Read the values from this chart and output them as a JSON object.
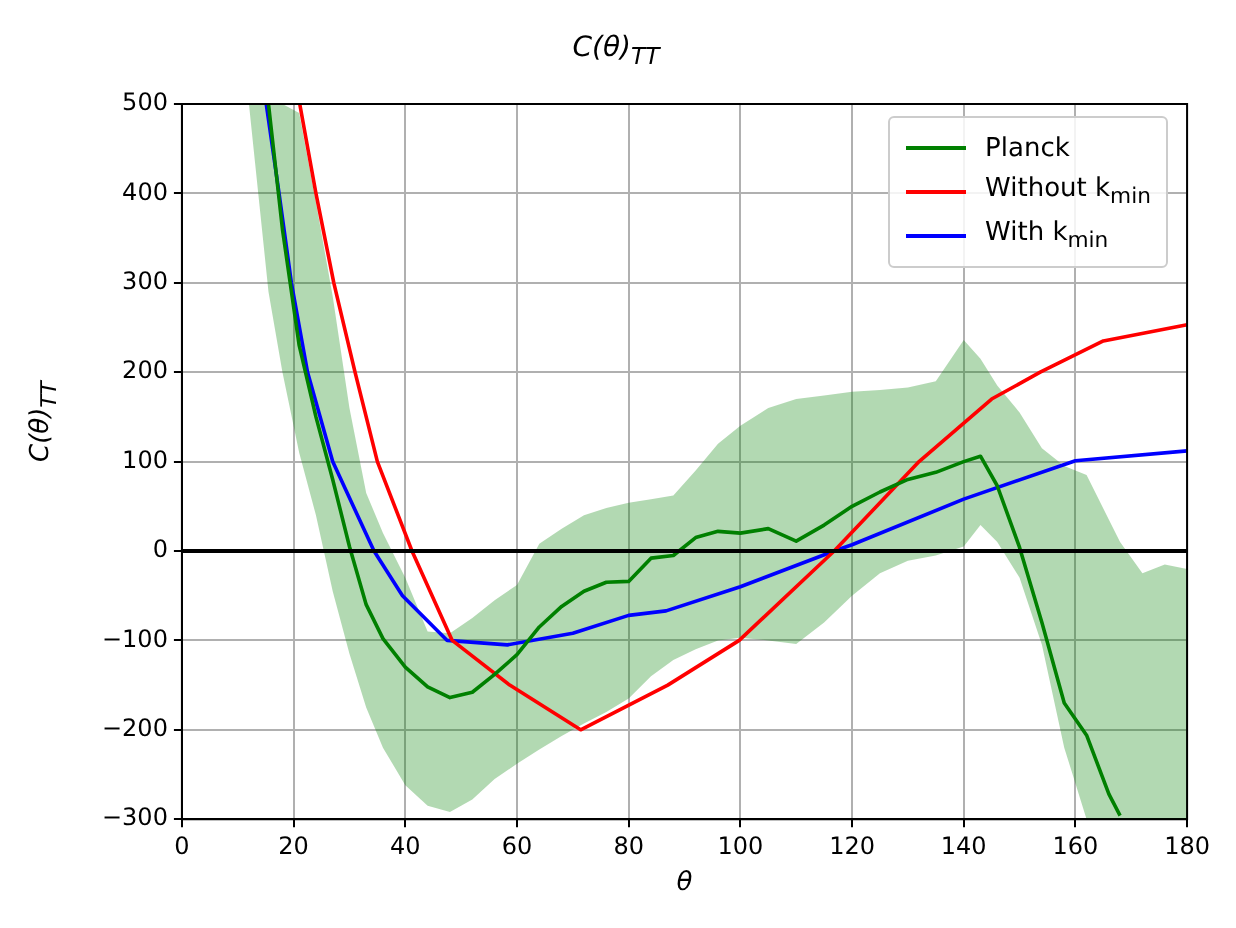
{
  "chart_data": {
    "type": "line",
    "title": "C(θ)$_{TT}$",
    "xlabel": "θ",
    "ylabel": "C(θ)$_{TT}$",
    "xlim": [
      0,
      180
    ],
    "xticks": [
      0,
      20,
      40,
      60,
      80,
      100,
      120,
      140,
      160,
      180
    ],
    "ylim": [
      -300,
      500
    ],
    "yticks": [
      -300,
      -200,
      -100,
      0,
      100,
      200,
      300,
      400,
      500
    ],
    "grid": true,
    "legend": "top right",
    "marker": "none",
    "line_style": "solid",
    "ref_lines": [
      {
        "axis": "y",
        "value": 0,
        "color": "#000000"
      }
    ],
    "series": [
      {
        "name": "Planck",
        "color": "#008000",
        "x": [
          12,
          15.5,
          18,
          21,
          24,
          27,
          30,
          33,
          36,
          40,
          44,
          48,
          52,
          56,
          60,
          64,
          68,
          72,
          76,
          80,
          84,
          88,
          92,
          96,
          100,
          105,
          110,
          115,
          120,
          125,
          130,
          135,
          140,
          143,
          146,
          150,
          154,
          158,
          162,
          166,
          168,
          172,
          176,
          180
        ],
        "values": [
          null,
          500,
          360,
          230,
          150,
          80,
          5,
          -60,
          -98,
          -130,
          -152,
          -164,
          -158,
          -138,
          -116,
          -85,
          -62,
          -45,
          -35,
          -34,
          -8,
          -5,
          15,
          22,
          20,
          25,
          11,
          29,
          50,
          66,
          80,
          88,
          100,
          106,
          73,
          4,
          -80,
          -170,
          -206,
          -272,
          -296,
          null,
          null,
          null
        ],
        "upper": [
          500,
          500,
          500,
          490,
          390,
          285,
          160,
          65,
          20,
          -30,
          -90,
          -92,
          -75,
          -55,
          -38,
          8,
          25,
          40,
          48,
          54,
          58,
          62,
          90,
          120,
          140,
          160,
          170,
          174,
          178,
          180,
          183,
          190,
          236,
          215,
          185,
          155,
          115,
          95,
          85,
          35,
          10,
          -25,
          -15,
          -20
        ],
        "lower": [
          500,
          290,
          200,
          110,
          40,
          -45,
          -115,
          -175,
          -220,
          -262,
          -285,
          -292,
          -278,
          -255,
          -238,
          -222,
          -207,
          -193,
          -180,
          -165,
          -140,
          -122,
          -110,
          -100,
          -97,
          -100,
          -104,
          -80,
          -50,
          -25,
          -11,
          -5,
          5,
          29,
          10,
          -30,
          -105,
          -220,
          -300,
          -300,
          -300,
          -300,
          -300,
          -300
        ]
      },
      {
        "name": "Without k$_{min}$",
        "color": "#ff0000",
        "x": [
          21.1,
          24,
          27.2,
          31,
          35,
          41.2,
          48.4,
          58.7,
          71.4,
          87,
          99.8,
          116.8,
          132,
          145,
          153.7,
          165,
          180
        ],
        "values": [
          500,
          400,
          300,
          200,
          100,
          0,
          -100,
          -150,
          -200,
          -150,
          -100,
          0,
          100,
          170,
          200,
          235,
          253
        ]
      },
      {
        "name": "With k$_{min}$",
        "color": "#0000ff",
        "x": [
          15.1,
          17.4,
          19.6,
          22.5,
          27,
          34.4,
          39.5,
          47.5,
          58.3,
          70,
          80,
          86.7,
          100,
          116.8,
          120,
          140,
          160,
          180
        ],
        "values": [
          500,
          400,
          300,
          200,
          100,
          0,
          -50,
          -100,
          -105,
          -92,
          -72,
          -67,
          -40,
          0,
          7,
          58,
          101,
          112
        ]
      }
    ]
  }
}
